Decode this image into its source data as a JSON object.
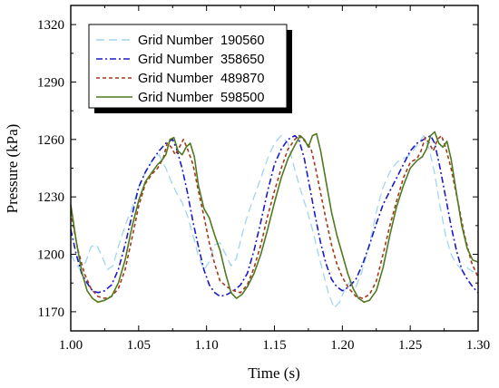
{
  "chart_data": {
    "type": "line",
    "xlabel": "Time (s)",
    "ylabel": "Pressure (kPa)",
    "xlim": [
      1.0,
      1.3
    ],
    "ylim": [
      1160,
      1330
    ],
    "x_ticks": [
      "1.00",
      "1.05",
      "1.10",
      "1.15",
      "1.20",
      "1.25",
      "1.30"
    ],
    "y_ticks": [
      "1170",
      "1200",
      "1230",
      "1260",
      "1290",
      "1320"
    ],
    "legend_position": "top-left",
    "grid": false,
    "series": [
      {
        "name": "Grid Number  190560",
        "color": "#9fd6ef",
        "dash": "long-dash",
        "x": [
          1.0,
          1.003,
          1.007,
          1.011,
          1.015,
          1.019,
          1.023,
          1.027,
          1.031,
          1.035,
          1.04,
          1.045,
          1.05,
          1.055,
          1.06,
          1.065,
          1.07,
          1.074,
          1.078,
          1.082,
          1.086,
          1.09,
          1.094,
          1.098,
          1.102,
          1.106,
          1.11,
          1.114,
          1.118,
          1.122,
          1.126,
          1.13,
          1.135,
          1.14,
          1.145,
          1.15,
          1.155,
          1.16,
          1.165,
          1.17,
          1.174,
          1.178,
          1.182,
          1.186,
          1.19,
          1.194,
          1.198,
          1.202,
          1.206,
          1.21,
          1.214,
          1.218,
          1.222,
          1.226,
          1.23,
          1.235,
          1.24,
          1.245,
          1.25,
          1.255,
          1.26,
          1.264,
          1.268,
          1.272,
          1.276,
          1.28,
          1.284,
          1.288,
          1.292,
          1.296,
          1.3
        ],
        "y": [
          1200,
          1196,
          1192,
          1196,
          1204,
          1205,
          1199,
          1192,
          1194,
          1204,
          1215,
          1224,
          1235,
          1243,
          1249,
          1252,
          1245,
          1238,
          1232,
          1227,
          1220,
          1210,
          1199,
          1192,
          1196,
          1205,
          1206,
          1200,
          1194,
          1198,
          1210,
          1220,
          1230,
          1240,
          1250,
          1258,
          1262,
          1258,
          1244,
          1232,
          1223,
          1213,
          1201,
          1190,
          1179,
          1172,
          1175,
          1182,
          1186,
          1183,
          1190,
          1200,
          1212,
          1225,
          1235,
          1243,
          1248,
          1250,
          1252,
          1257,
          1262,
          1255,
          1242,
          1225,
          1210,
          1200,
          1195,
          1192,
          1193,
          1191,
          1190
        ]
      },
      {
        "name": "Grid Number  358650",
        "color": "#1a1ac8",
        "dash": "dash-dot",
        "x": [
          1.0,
          1.004,
          1.008,
          1.012,
          1.016,
          1.02,
          1.025,
          1.03,
          1.035,
          1.04,
          1.045,
          1.05,
          1.055,
          1.06,
          1.065,
          1.07,
          1.075,
          1.078,
          1.082,
          1.086,
          1.09,
          1.094,
          1.098,
          1.102,
          1.106,
          1.11,
          1.115,
          1.12,
          1.125,
          1.13,
          1.135,
          1.14,
          1.145,
          1.15,
          1.155,
          1.16,
          1.165,
          1.168,
          1.172,
          1.176,
          1.18,
          1.184,
          1.188,
          1.192,
          1.196,
          1.2,
          1.205,
          1.21,
          1.215,
          1.22,
          1.225,
          1.23,
          1.235,
          1.24,
          1.245,
          1.25,
          1.255,
          1.26,
          1.265,
          1.268,
          1.272,
          1.276,
          1.28,
          1.284,
          1.288,
          1.292,
          1.296,
          1.3
        ],
        "y": [
          1213,
          1200,
          1190,
          1185,
          1181,
          1180,
          1181,
          1184,
          1192,
          1205,
          1220,
          1235,
          1243,
          1249,
          1254,
          1258,
          1260,
          1255,
          1245,
          1232,
          1217,
          1204,
          1192,
          1184,
          1180,
          1178,
          1179,
          1181,
          1184,
          1190,
          1202,
          1217,
          1233,
          1247,
          1255,
          1260,
          1262,
          1260,
          1250,
          1235,
          1220,
          1206,
          1195,
          1187,
          1183,
          1181,
          1183,
          1187,
          1195,
          1205,
          1216,
          1226,
          1233,
          1240,
          1247,
          1254,
          1258,
          1260,
          1262,
          1258,
          1245,
          1230,
          1215,
          1202,
          1192,
          1187,
          1183,
          1180
        ]
      },
      {
        "name": "Grid Number  489870",
        "color": "#a33a1e",
        "dash": "short-dash",
        "x": [
          1.0,
          1.005,
          1.01,
          1.015,
          1.02,
          1.025,
          1.03,
          1.035,
          1.04,
          1.045,
          1.05,
          1.055,
          1.06,
          1.064,
          1.068,
          1.071,
          1.074,
          1.077,
          1.08,
          1.083,
          1.086,
          1.09,
          1.094,
          1.098,
          1.102,
          1.106,
          1.11,
          1.115,
          1.12,
          1.125,
          1.13,
          1.135,
          1.14,
          1.145,
          1.15,
          1.155,
          1.16,
          1.165,
          1.168,
          1.171,
          1.174,
          1.177,
          1.18,
          1.184,
          1.188,
          1.192,
          1.196,
          1.2,
          1.205,
          1.21,
          1.215,
          1.22,
          1.225,
          1.23,
          1.235,
          1.24,
          1.245,
          1.25,
          1.255,
          1.258,
          1.261,
          1.264,
          1.267,
          1.27,
          1.273,
          1.276,
          1.28,
          1.285,
          1.29,
          1.295,
          1.3
        ],
        "y": [
          1222,
          1203,
          1190,
          1182,
          1178,
          1177,
          1178,
          1182,
          1192,
          1208,
          1225,
          1237,
          1242,
          1245,
          1250,
          1258,
          1256,
          1252,
          1256,
          1260,
          1255,
          1247,
          1233,
          1220,
          1206,
          1195,
          1186,
          1183,
          1181,
          1180,
          1184,
          1193,
          1205,
          1220,
          1233,
          1245,
          1255,
          1260,
          1262,
          1260,
          1258,
          1255,
          1246,
          1232,
          1218,
          1205,
          1195,
          1188,
          1182,
          1178,
          1177,
          1179,
          1186,
          1200,
          1215,
          1228,
          1240,
          1248,
          1250,
          1254,
          1261,
          1258,
          1254,
          1260,
          1262,
          1256,
          1245,
          1228,
          1210,
          1196,
          1188
        ]
      },
      {
        "name": "Grid Number  598500",
        "color": "#4f7a1e",
        "dash": "solid",
        "x": [
          1.0,
          1.004,
          1.008,
          1.012,
          1.016,
          1.02,
          1.025,
          1.03,
          1.035,
          1.04,
          1.045,
          1.05,
          1.055,
          1.06,
          1.064,
          1.067,
          1.07,
          1.073,
          1.076,
          1.079,
          1.082,
          1.085,
          1.088,
          1.091,
          1.094,
          1.098,
          1.102,
          1.106,
          1.11,
          1.114,
          1.118,
          1.122,
          1.126,
          1.13,
          1.135,
          1.14,
          1.145,
          1.15,
          1.155,
          1.16,
          1.165,
          1.169,
          1.172,
          1.175,
          1.178,
          1.181,
          1.184,
          1.188,
          1.192,
          1.196,
          1.2,
          1.204,
          1.208,
          1.212,
          1.216,
          1.22,
          1.225,
          1.23,
          1.235,
          1.24,
          1.245,
          1.25,
          1.255,
          1.259,
          1.262,
          1.265,
          1.268,
          1.271,
          1.274,
          1.277,
          1.28,
          1.284,
          1.288,
          1.292,
          1.296,
          1.3
        ],
        "y": [
          1226,
          1207,
          1191,
          1181,
          1177,
          1175,
          1176,
          1178,
          1185,
          1197,
          1214,
          1228,
          1238,
          1243,
          1247,
          1249,
          1252,
          1260,
          1261,
          1254,
          1252,
          1256,
          1258,
          1251,
          1236,
          1224,
          1219,
          1210,
          1202,
          1190,
          1180,
          1177,
          1179,
          1183,
          1190,
          1200,
          1213,
          1227,
          1240,
          1250,
          1257,
          1262,
          1260,
          1256,
          1262,
          1263,
          1254,
          1238,
          1222,
          1210,
          1200,
          1190,
          1182,
          1177,
          1175,
          1176,
          1181,
          1193,
          1210,
          1225,
          1236,
          1245,
          1249,
          1251,
          1255,
          1262,
          1264,
          1258,
          1256,
          1259,
          1250,
          1232,
          1215,
          1203,
          1197,
          1196
        ]
      }
    ]
  }
}
